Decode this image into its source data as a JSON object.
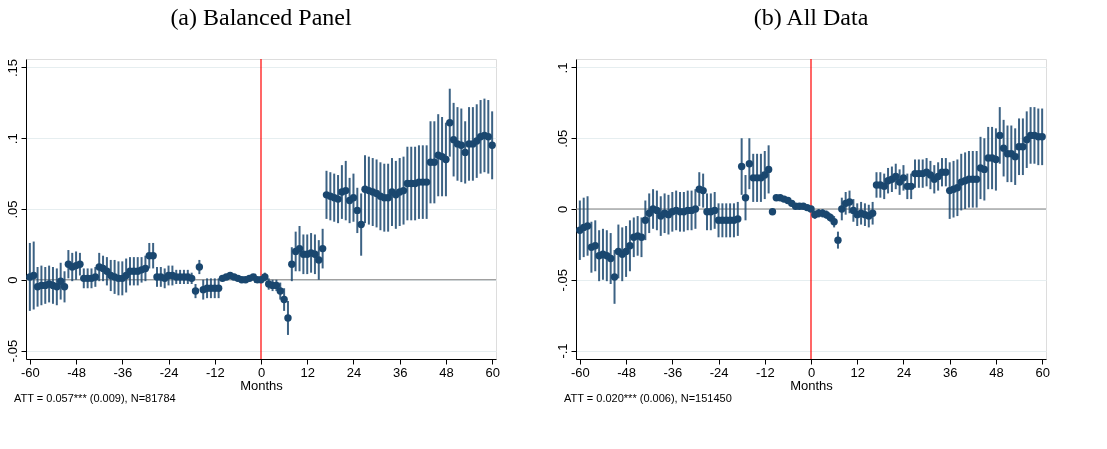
{
  "chart_data": [
    {
      "type": "scatter",
      "title": "(a) Balanced Panel",
      "xlabel": "Months",
      "annotations": [
        "ATT = 0.057*** (0.009),  N=81784"
      ],
      "marker": "circle",
      "grid": "y",
      "x": [
        -60,
        -59,
        -58,
        -57,
        -56,
        -55,
        -54,
        -53,
        -52,
        -51,
        -50,
        -49,
        -48,
        -47,
        -46,
        -45,
        -44,
        -43,
        -42,
        -41,
        -40,
        -39,
        -38,
        -37,
        -36,
        -35,
        -34,
        -33,
        -32,
        -31,
        -30,
        -29,
        -28,
        -27,
        -26,
        -25,
        -24,
        -23,
        -22,
        -21,
        -20,
        -19,
        -18,
        -17,
        -16,
        -15,
        -14,
        -13,
        -12,
        -11,
        -10,
        -9,
        -8,
        -7,
        -6,
        -5,
        -4,
        -3,
        -2,
        -1,
        0,
        1,
        2,
        3,
        4,
        5,
        6,
        7,
        8,
        9,
        10,
        11,
        12,
        13,
        14,
        15,
        16,
        17,
        18,
        19,
        20,
        21,
        22,
        23,
        24,
        25,
        26,
        27,
        28,
        29,
        30,
        31,
        32,
        33,
        34,
        35,
        36,
        37,
        38,
        39,
        40,
        41,
        42,
        43,
        44,
        45,
        46,
        47,
        48,
        49,
        50,
        51,
        52,
        53,
        54,
        55,
        56,
        57,
        58,
        59,
        60
      ],
      "series": [
        {
          "color": "#1a476f",
          "values": [
            0.002,
            0.003,
            -0.005,
            -0.004,
            -0.004,
            -0.003,
            -0.004,
            -0.005,
            -0.001,
            -0.005,
            0.011,
            0.009,
            0.01,
            0.011,
            0.001,
            0.001,
            0.001,
            0.002,
            0.009,
            0.008,
            0.006,
            0.003,
            0.002,
            0.001,
            0.001,
            0.003,
            0.006,
            0.006,
            0.006,
            0.007,
            0.008,
            0.017,
            0.017,
            0.002,
            0.002,
            0.001,
            0.003,
            0.003,
            0.002,
            0.002,
            0.002,
            0.002,
            0.001,
            -0.008,
            0.009,
            -0.007,
            -0.006,
            -0.006,
            -0.006,
            -0.006,
            0.001,
            0.002,
            0.003,
            0.002,
            0.001,
            0.0,
            0.0,
            0.001,
            0.002,
            0.0,
            0.0,
            0.002,
            -0.003,
            -0.004,
            -0.004,
            -0.008,
            -0.014,
            -0.027,
            0.011,
            0.02,
            0.022,
            0.018,
            0.018,
            0.019,
            0.018,
            0.014,
            0.022,
            0.06,
            0.059,
            0.058,
            0.057,
            0.062,
            0.063,
            0.056,
            0.058,
            0.049,
            0.039,
            0.064,
            0.063,
            0.062,
            0.061,
            0.059,
            0.058,
            0.058,
            0.062,
            0.06,
            0.062,
            0.063,
            0.068,
            0.068,
            0.068,
            0.069,
            0.069,
            0.069,
            0.083,
            0.083,
            0.088,
            0.087,
            0.085,
            0.111,
            0.099,
            0.096,
            0.095,
            0.09,
            0.096,
            0.096,
            0.098,
            0.101,
            0.102,
            0.101,
            0.095
          ],
          "errors": [
            0.024,
            0.024,
            0.014,
            0.014,
            0.013,
            0.013,
            0.013,
            0.013,
            0.013,
            0.011,
            0.01,
            0.01,
            0.01,
            0.008,
            0.007,
            0.007,
            0.007,
            0.007,
            0.01,
            0.009,
            0.01,
            0.011,
            0.012,
            0.012,
            0.012,
            0.012,
            0.01,
            0.01,
            0.01,
            0.009,
            0.009,
            0.009,
            0.009,
            0.007,
            0.007,
            0.007,
            0.007,
            0.007,
            0.005,
            0.005,
            0.005,
            0.005,
            0.004,
            0.005,
            0.005,
            0.007,
            0.007,
            0.007,
            0.007,
            0.007,
            0.001,
            0.001,
            0.001,
            0.001,
            0.001,
            0.001,
            0.001,
            0.001,
            0.001,
            0.001,
            0.001,
            0.003,
            0.004,
            0.004,
            0.004,
            0.006,
            0.008,
            0.012,
            0.012,
            0.014,
            0.016,
            0.014,
            0.014,
            0.014,
            0.014,
            0.014,
            0.014,
            0.017,
            0.017,
            0.017,
            0.017,
            0.019,
            0.021,
            0.016,
            0.017,
            0.016,
            0.022,
            0.024,
            0.024,
            0.024,
            0.024,
            0.024,
            0.024,
            0.024,
            0.024,
            0.024,
            0.024,
            0.024,
            0.026,
            0.026,
            0.026,
            0.026,
            0.026,
            0.026,
            0.029,
            0.029,
            0.029,
            0.028,
            0.026,
            0.024,
            0.026,
            0.026,
            0.026,
            0.022,
            0.026,
            0.026,
            0.026,
            0.026,
            0.026,
            0.026,
            0.024
          ]
        }
      ],
      "xlim": [
        -61,
        61
      ],
      "xticks": [
        -60,
        -48,
        -36,
        -24,
        -12,
        0,
        12,
        24,
        36,
        48,
        60
      ],
      "ylim": [
        -0.056,
        0.156
      ],
      "yticks": [
        {
          "value": -0.05,
          "label": "-.05"
        },
        0,
        {
          "value": 0.05,
          "label": ".05"
        },
        {
          "value": 0.1,
          "label": ".1"
        },
        {
          "value": 0.15,
          "label": ".15"
        }
      ],
      "ref_lines": [
        {
          "axis": "y",
          "value": 0,
          "color": "#808080"
        },
        {
          "axis": "x",
          "value": 0,
          "color": "#ff0000"
        }
      ]
    },
    {
      "type": "scatter",
      "title": "(b) All Data",
      "xlabel": "Months",
      "annotations": [
        "ATT = 0.020*** (0.006),  N=151450"
      ],
      "marker": "circle",
      "grid": "y",
      "x": [
        -60,
        -59,
        -58,
        -57,
        -56,
        -55,
        -54,
        -53,
        -52,
        -51,
        -50,
        -49,
        -48,
        -47,
        -46,
        -45,
        -44,
        -43,
        -42,
        -41,
        -40,
        -39,
        -38,
        -37,
        -36,
        -35,
        -34,
        -33,
        -32,
        -31,
        -30,
        -29,
        -28,
        -27,
        -26,
        -25,
        -24,
        -23,
        -22,
        -21,
        -20,
        -19,
        -18,
        -17,
        -16,
        -15,
        -14,
        -13,
        -12,
        -11,
        -10,
        -9,
        -8,
        -7,
        -6,
        -5,
        -4,
        -3,
        -2,
        -1,
        0,
        1,
        2,
        3,
        4,
        5,
        6,
        7,
        8,
        9,
        10,
        11,
        12,
        13,
        14,
        15,
        16,
        17,
        18,
        19,
        20,
        21,
        22,
        23,
        24,
        25,
        26,
        27,
        28,
        29,
        30,
        31,
        32,
        33,
        34,
        35,
        36,
        37,
        38,
        39,
        40,
        41,
        42,
        43,
        44,
        45,
        46,
        47,
        48,
        49,
        50,
        51,
        52,
        53,
        54,
        55,
        56,
        57,
        58,
        59,
        60
      ],
      "series": [
        {
          "color": "#1a476f",
          "values": [
            -0.015,
            -0.013,
            -0.012,
            -0.027,
            -0.026,
            -0.033,
            -0.032,
            -0.033,
            -0.035,
            -0.048,
            -0.03,
            -0.032,
            -0.03,
            -0.026,
            -0.02,
            -0.019,
            -0.02,
            -0.008,
            -0.003,
            0.0,
            -0.001,
            -0.005,
            -0.003,
            -0.004,
            -0.002,
            -0.001,
            -0.002,
            -0.002,
            -0.001,
            -0.001,
            0.0,
            0.014,
            0.013,
            -0.002,
            -0.002,
            -0.001,
            -0.008,
            -0.008,
            -0.008,
            -0.008,
            -0.008,
            -0.007,
            0.03,
            0.008,
            0.032,
            0.022,
            0.022,
            0.022,
            0.024,
            0.028,
            -0.002,
            0.008,
            0.008,
            0.007,
            0.006,
            0.004,
            0.002,
            0.002,
            0.002,
            0.001,
            0.0,
            -0.004,
            -0.003,
            -0.003,
            -0.004,
            -0.006,
            -0.009,
            -0.022,
            0.0,
            0.004,
            0.005,
            -0.001,
            -0.004,
            -0.003,
            -0.004,
            -0.005,
            -0.003,
            0.017,
            0.017,
            0.016,
            0.02,
            0.021,
            0.023,
            0.019,
            0.022,
            0.016,
            0.016,
            0.025,
            0.025,
            0.025,
            0.026,
            0.024,
            0.021,
            0.023,
            0.026,
            0.026,
            0.013,
            0.014,
            0.015,
            0.019,
            0.02,
            0.021,
            0.021,
            0.021,
            0.029,
            0.028,
            0.036,
            0.036,
            0.035,
            0.052,
            0.043,
            0.039,
            0.039,
            0.037,
            0.044,
            0.044,
            0.049,
            0.052,
            0.052,
            0.051,
            0.051
          ],
          "errors": [
            0.021,
            0.021,
            0.021,
            0.018,
            0.018,
            0.018,
            0.018,
            0.018,
            0.018,
            0.019,
            0.019,
            0.019,
            0.018,
            0.018,
            0.014,
            0.014,
            0.014,
            0.014,
            0.014,
            0.014,
            0.014,
            0.014,
            0.014,
            0.014,
            0.014,
            0.014,
            0.014,
            0.014,
            0.014,
            0.014,
            0.014,
            0.012,
            0.012,
            0.013,
            0.013,
            0.013,
            0.012,
            0.012,
            0.012,
            0.012,
            0.012,
            0.012,
            0.02,
            0.016,
            0.018,
            0.017,
            0.017,
            0.017,
            0.017,
            0.017,
            0.001,
            0.001,
            0.001,
            0.001,
            0.001,
            0.001,
            0.001,
            0.001,
            0.001,
            0.001,
            0.001,
            0.003,
            0.003,
            0.003,
            0.003,
            0.003,
            0.004,
            0.006,
            0.008,
            0.008,
            0.008,
            0.008,
            0.008,
            0.008,
            0.008,
            0.008,
            0.008,
            0.009,
            0.009,
            0.009,
            0.009,
            0.009,
            0.009,
            0.009,
            0.009,
            0.009,
            0.009,
            0.01,
            0.01,
            0.01,
            0.01,
            0.01,
            0.01,
            0.01,
            0.01,
            0.01,
            0.02,
            0.02,
            0.02,
            0.02,
            0.02,
            0.02,
            0.02,
            0.02,
            0.022,
            0.022,
            0.022,
            0.022,
            0.022,
            0.02,
            0.02,
            0.02,
            0.02,
            0.02,
            0.02,
            0.02,
            0.02,
            0.02,
            0.02,
            0.02,
            0.02
          ]
        }
      ],
      "xlim": [
        -61,
        61
      ],
      "xticks": [
        -60,
        -48,
        -36,
        -24,
        -12,
        0,
        12,
        24,
        36,
        48,
        60
      ],
      "ylim": [
        -0.106,
        0.106
      ],
      "yticks": [
        {
          "value": -0.1,
          "label": "-.1"
        },
        {
          "value": -0.05,
          "label": "-.05"
        },
        0,
        {
          "value": 0.05,
          "label": ".05"
        },
        {
          "value": 0.1,
          "label": ".1"
        }
      ],
      "ref_lines": [
        {
          "axis": "y",
          "value": 0,
          "color": "#808080"
        },
        {
          "axis": "x",
          "value": 0,
          "color": "#ff0000"
        }
      ]
    }
  ]
}
